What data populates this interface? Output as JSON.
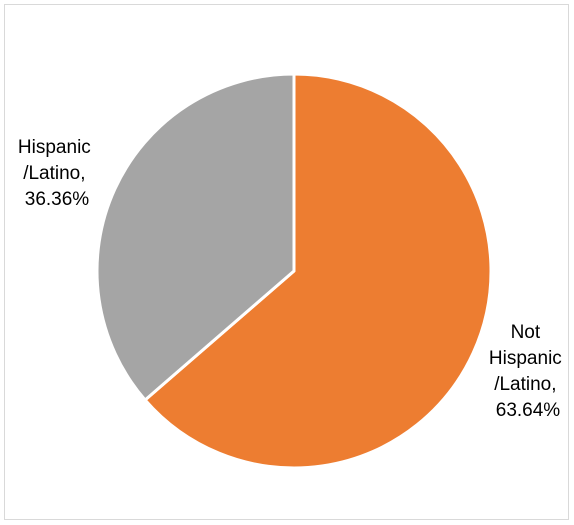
{
  "chart_data": {
    "type": "pie",
    "slices": [
      {
        "label_lines": [
          "Not",
          "Hispanic",
          "/Latino,",
          "63.64%"
        ],
        "category": "Not Hispanic/Latino",
        "value": 63.64,
        "color": "#ED7D31"
      },
      {
        "label_lines": [
          "Hispanic",
          "/Latino,",
          "36.36%"
        ],
        "category": "Hispanic/Latino",
        "value": 36.36,
        "color": "#A5A5A5"
      }
    ],
    "start_angle": "12 o'clock",
    "direction": "clockwise",
    "slice_border_color": "#FFFFFF"
  }
}
